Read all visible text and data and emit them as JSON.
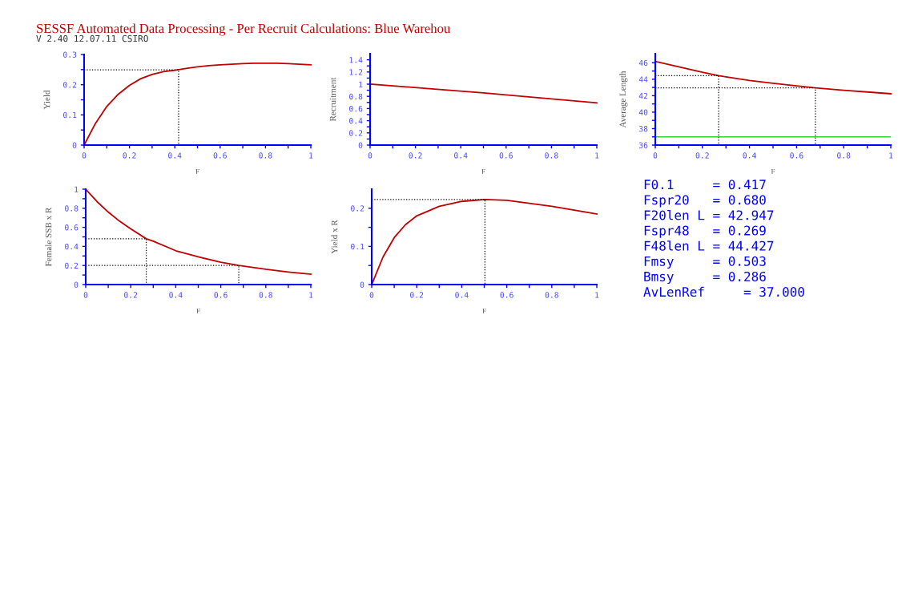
{
  "chart_data": [
    {
      "type": "line",
      "title": "SESSF Automated Data Processing - Per Recruit Calculations: Blue Warehou",
      "subtitle": "V 2.40 12.07.11 CSIRO",
      "xlabel": "F",
      "ylabel": "Yield",
      "xlim": [
        0,
        1
      ],
      "ylim": [
        0,
        0.3
      ],
      "xticks": [
        0,
        {
          "value": 0.1,
          "label": null
        },
        0.2,
        {
          "value": 0.3,
          "label": null
        },
        0.4,
        {
          "value": 0.5,
          "label": null
        },
        0.6,
        {
          "value": 0.7,
          "label": null
        },
        0.8,
        {
          "value": 0.9,
          "label": null
        },
        1
      ],
      "yticks": [
        0,
        {
          "value": 0.05,
          "label": null
        },
        0.1,
        {
          "value": 0.15,
          "label": null
        },
        0.2,
        {
          "value": 0.25,
          "label": null
        },
        0.3
      ],
      "series": [
        {
          "color": "#c00000",
          "x": [
            0,
            0.05,
            0.1,
            0.15,
            0.2,
            0.25,
            0.3,
            0.35,
            0.4,
            0.45,
            0.5,
            0.55,
            0.6,
            0.65,
            0.7,
            0.75,
            0.8,
            0.85,
            0.9,
            0.95,
            1
          ],
          "values": [
            0,
            0.072,
            0.128,
            0.168,
            0.198,
            0.22,
            0.234,
            0.243,
            0.248,
            0.254,
            0.259,
            0.263,
            0.266,
            0.268,
            0.27,
            0.271,
            0.271,
            0.271,
            0.27,
            0.268,
            0.266
          ]
        },
        {
          "color": "#000000",
          "line_style": "dotted",
          "x": [
            0,
            0.417,
            0.417
          ],
          "values": [
            0.249,
            0.249,
            0
          ]
        }
      ]
    },
    {
      "type": "line",
      "xlabel": "F",
      "ylabel": "Recruitment",
      "xlim": [
        0,
        1
      ],
      "ylim": [
        0,
        1.5
      ],
      "xticks": [
        0,
        {
          "value": 0.1,
          "label": null
        },
        0.2,
        {
          "value": 0.3,
          "label": null
        },
        0.4,
        {
          "value": 0.5,
          "label": null
        },
        0.6,
        {
          "value": 0.7,
          "label": null
        },
        0.8,
        {
          "value": 0.9,
          "label": null
        },
        1
      ],
      "yticks": [
        0,
        {
          "value": 0.1,
          "label": null
        },
        0.2,
        {
          "value": 0.3,
          "label": null
        },
        0.4,
        {
          "value": 0.5,
          "label": null
        },
        0.6,
        {
          "value": 0.7,
          "label": null
        },
        0.8,
        {
          "value": 0.9,
          "label": null
        },
        1,
        {
          "value": 1.1,
          "label": null
        },
        1.2,
        {
          "value": 1.3,
          "label": null
        },
        1.4
      ],
      "series": [
        {
          "color": "#c00000",
          "x": [
            0,
            0.25,
            0.5,
            0.75,
            1
          ],
          "values": [
            1.0,
            0.93,
            0.857,
            0.775,
            0.693
          ]
        }
      ]
    },
    {
      "type": "line",
      "xlabel": "F",
      "ylabel": "Average Length",
      "xlim": [
        0,
        1
      ],
      "ylim": [
        36,
        47.1
      ],
      "xticks": [
        0,
        {
          "value": 0.1,
          "label": null
        },
        0.2,
        {
          "value": 0.3,
          "label": null
        },
        0.4,
        {
          "value": 0.5,
          "label": null
        },
        0.6,
        {
          "value": 0.7,
          "label": null
        },
        0.8,
        {
          "value": 0.9,
          "label": null
        },
        1
      ],
      "yticks": [
        36,
        {
          "value": 37,
          "label": null
        },
        38,
        {
          "value": 39,
          "label": null
        },
        40,
        {
          "value": 41,
          "label": null
        },
        42,
        {
          "value": 43,
          "label": null
        },
        44,
        {
          "value": 45,
          "label": null
        },
        46
      ],
      "ref_lines": [
        {
          "axis": "y",
          "value": 37,
          "color": "#33cc33"
        }
      ],
      "series": [
        {
          "color": "#c00000",
          "x": [
            0,
            0.1,
            0.2,
            0.269,
            0.3,
            0.4,
            0.5,
            0.6,
            0.68,
            0.8,
            0.9,
            1
          ],
          "values": [
            46.16,
            45.5,
            44.85,
            44.427,
            44.28,
            43.85,
            43.5,
            43.2,
            42.947,
            42.65,
            42.45,
            42.24
          ]
        },
        {
          "color": "#000000",
          "line_style": "dotted",
          "x": [
            0,
            0.269,
            0.269
          ],
          "values": [
            44.427,
            44.427,
            36
          ]
        },
        {
          "color": "#000000",
          "line_style": "dotted",
          "x": [
            0,
            0.68,
            0.68
          ],
          "values": [
            42.947,
            42.947,
            36
          ]
        }
      ]
    },
    {
      "type": "line",
      "xlabel": "F",
      "ylabel": "Female SSB x R",
      "xlim": [
        0,
        1
      ],
      "ylim": [
        0,
        1
      ],
      "xticks": [
        0,
        {
          "value": 0.1,
          "label": null
        },
        0.2,
        {
          "value": 0.3,
          "label": null
        },
        0.4,
        {
          "value": 0.5,
          "label": null
        },
        0.6,
        {
          "value": 0.7,
          "label": null
        },
        0.8,
        {
          "value": 0.9,
          "label": null
        },
        1
      ],
      "yticks": [
        0,
        {
          "value": 0.1,
          "label": null
        },
        0.2,
        {
          "value": 0.3,
          "label": null
        },
        0.4,
        {
          "value": 0.5,
          "label": null
        },
        0.6,
        {
          "value": 0.7,
          "label": null
        },
        0.8,
        {
          "value": 0.9,
          "label": null
        },
        1
      ],
      "series": [
        {
          "color": "#c00000",
          "x": [
            0,
            0.05,
            0.1,
            0.15,
            0.2,
            0.269,
            0.3,
            0.4,
            0.5,
            0.6,
            0.68,
            0.8,
            0.9,
            1
          ],
          "values": [
            1.0,
            0.87,
            0.76,
            0.665,
            0.585,
            0.48,
            0.455,
            0.355,
            0.29,
            0.235,
            0.2,
            0.16,
            0.132,
            0.109
          ]
        },
        {
          "color": "#000000",
          "line_style": "dotted",
          "x": [
            0,
            0.269,
            0.269
          ],
          "values": [
            0.48,
            0.48,
            0
          ]
        },
        {
          "color": "#000000",
          "line_style": "dotted",
          "x": [
            0,
            0.68,
            0.68
          ],
          "values": [
            0.2,
            0.2,
            0
          ]
        }
      ]
    },
    {
      "type": "line",
      "xlabel": "F",
      "ylabel": "Yield x R",
      "xlim": [
        0,
        1
      ],
      "ylim": [
        0,
        0.25
      ],
      "xticks": [
        0,
        {
          "value": 0.1,
          "label": null
        },
        0.2,
        {
          "value": 0.3,
          "label": null
        },
        0.4,
        {
          "value": 0.5,
          "label": null
        },
        0.6,
        {
          "value": 0.7,
          "label": null
        },
        0.8,
        {
          "value": 0.9,
          "label": null
        },
        1
      ],
      "yticks": [
        0,
        {
          "value": 0.05,
          "label": null
        },
        0.1,
        {
          "value": 0.15,
          "label": null
        },
        0.2
      ],
      "series": [
        {
          "color": "#c00000",
          "x": [
            0,
            0.05,
            0.1,
            0.15,
            0.2,
            0.3,
            0.4,
            0.503,
            0.6,
            0.7,
            0.8,
            0.9,
            1
          ],
          "values": [
            0,
            0.072,
            0.123,
            0.157,
            0.18,
            0.205,
            0.218,
            0.223,
            0.221,
            0.213,
            0.205,
            0.195,
            0.185
          ]
        },
        {
          "color": "#000000",
          "line_style": "dotted",
          "x": [
            0,
            0.503,
            0.503
          ],
          "values": [
            0.223,
            0.223,
            0
          ]
        }
      ]
    },
    {
      "type": "other",
      "annotations": [
        "F0.1     = 0.417",
        "Fspr20   = 0.680",
        "F20len L = 42.947",
        "Fspr48   = 0.269",
        "F48len L = 44.427",
        "Fmsy     = 0.503",
        "Bmsy     = 0.286",
        "AvLenRef     = 37.000"
      ]
    }
  ]
}
